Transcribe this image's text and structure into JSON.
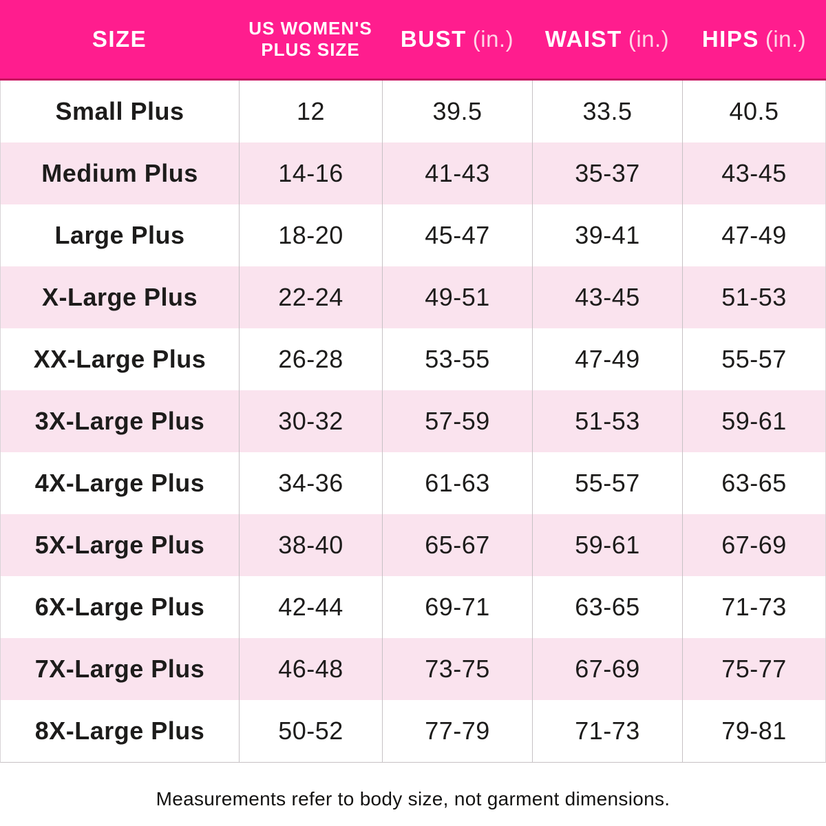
{
  "header": {
    "col_size": "SIZE",
    "col_plus_line1": "US WOMEN'S",
    "col_plus_line2": "PLUS SIZE",
    "col_bust": "BUST",
    "col_waist": "WAIST",
    "col_hips": "HIPS",
    "unit": "(in.)"
  },
  "chart_data": {
    "type": "table",
    "title": "Women's plus size chart",
    "columns": [
      "SIZE",
      "US WOMEN'S PLUS SIZE",
      "BUST (in.)",
      "WAIST (in.)",
      "HIPS (in.)"
    ],
    "rows": [
      [
        "Small Plus",
        "12",
        "39.5",
        "33.5",
        "40.5"
      ],
      [
        "Medium Plus",
        "14-16",
        "41-43",
        "35-37",
        "43-45"
      ],
      [
        "Large Plus",
        "18-20",
        "45-47",
        "39-41",
        "47-49"
      ],
      [
        "X-Large Plus",
        "22-24",
        "49-51",
        "43-45",
        "51-53"
      ],
      [
        "XX-Large Plus",
        "26-28",
        "53-55",
        "47-49",
        "55-57"
      ],
      [
        "3X-Large Plus",
        "30-32",
        "57-59",
        "51-53",
        "59-61"
      ],
      [
        "4X-Large Plus",
        "34-36",
        "61-63",
        "55-57",
        "63-65"
      ],
      [
        "5X-Large Plus",
        "38-40",
        "65-67",
        "59-61",
        "67-69"
      ],
      [
        "6X-Large Plus",
        "42-44",
        "69-71",
        "63-65",
        "71-73"
      ],
      [
        "7X-Large Plus",
        "46-48",
        "73-75",
        "67-69",
        "75-77"
      ],
      [
        "8X-Large Plus",
        "50-52",
        "77-79",
        "71-73",
        "79-81"
      ]
    ]
  },
  "footnote": "Measurements refer to body size, not garment dimensions.",
  "colors": {
    "header_bg": "#ff1d8e",
    "header_edge": "#c9115f",
    "alt_row_bg": "#fae3ee",
    "row_bg": "#ffffff",
    "grid_line": "#c6c1c4",
    "text": "#1d1c1b",
    "header_text": "#ffffff",
    "unit_text": "#ffd4e6"
  }
}
